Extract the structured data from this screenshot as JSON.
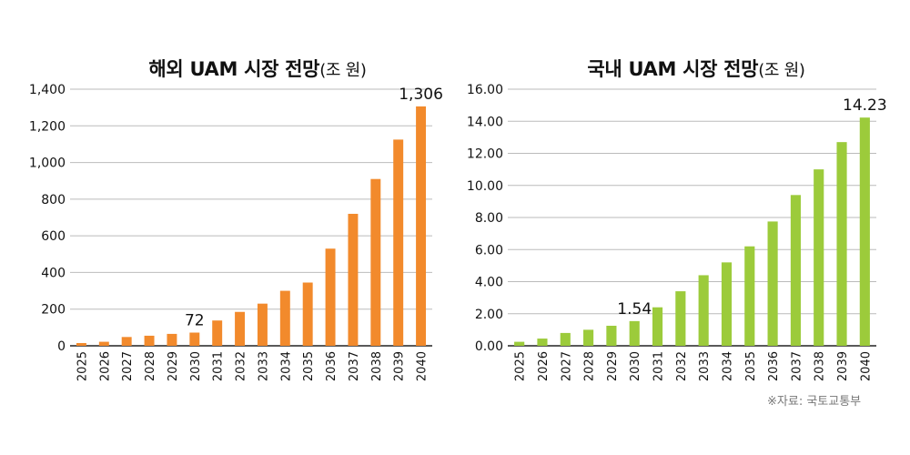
{
  "charts": [
    {
      "title_main": "해외 UAM 시장 전망",
      "title_unit": "(조 원)",
      "bar_color": "#f28a2c"
    },
    {
      "title_main": "국내 UAM 시장 전망",
      "title_unit": "(조 원)",
      "bar_color": "#9ccb3b"
    }
  ],
  "source": "※자료: 국토교통부",
  "chart_data": [
    {
      "type": "bar",
      "title": "해외 UAM 시장 전망(조 원)",
      "categories": [
        "2025",
        "2026",
        "2027",
        "2028",
        "2029",
        "2030",
        "2031",
        "2032",
        "2033",
        "2034",
        "2035",
        "2036",
        "2037",
        "2038",
        "2039",
        "2040"
      ],
      "values": [
        15,
        22,
        48,
        55,
        65,
        72,
        138,
        185,
        230,
        300,
        345,
        530,
        720,
        910,
        1125,
        1306
      ],
      "ylim": [
        0,
        1400
      ],
      "yticks": [
        0,
        200,
        400,
        600,
        800,
        1000,
        1200,
        1400
      ],
      "ytick_labels": [
        "0",
        "200",
        "400",
        "600",
        "800",
        "1,000",
        "1,200",
        "1,400"
      ],
      "annotations": [
        {
          "category": "2030",
          "text": "72"
        },
        {
          "category": "2040",
          "text": "1,306"
        }
      ],
      "grid": true
    },
    {
      "type": "bar",
      "title": "국내 UAM 시장 전망(조 원)",
      "categories": [
        "2025",
        "2026",
        "2027",
        "2028",
        "2029",
        "2030",
        "2031",
        "2032",
        "2033",
        "2034",
        "2035",
        "2036",
        "2037",
        "2038",
        "2039",
        "2040"
      ],
      "values": [
        0.25,
        0.45,
        0.8,
        1.0,
        1.25,
        1.54,
        2.4,
        3.4,
        4.4,
        5.2,
        6.2,
        7.75,
        9.4,
        11.0,
        12.7,
        14.23
      ],
      "ylim": [
        0,
        16
      ],
      "yticks": [
        0,
        2,
        4,
        6,
        8,
        10,
        12,
        14,
        16
      ],
      "ytick_labels": [
        "0.00",
        "2.00",
        "4.00",
        "6.00",
        "8.00",
        "10.00",
        "12.00",
        "14.00",
        "16.00"
      ],
      "annotations": [
        {
          "category": "2030",
          "text": "1.54"
        },
        {
          "category": "2040",
          "text": "14.23"
        }
      ],
      "grid": true
    }
  ]
}
